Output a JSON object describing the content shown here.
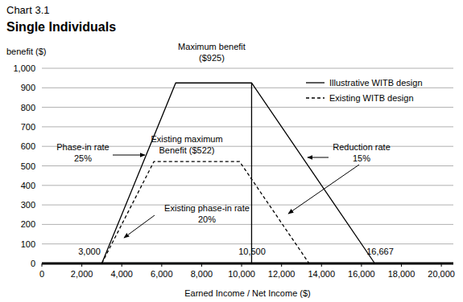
{
  "chart_data": {
    "type": "line",
    "title": "Chart 3.1",
    "subtitle": "Single Individuals",
    "y_label": "benefit ($)",
    "x_label": "Earned Income / Net Income ($)",
    "xlim": [
      0,
      20600
    ],
    "ylim": [
      0,
      1000
    ],
    "xticks": [
      0,
      {
        "value": 2000,
        "label": "2,000"
      },
      {
        "value": 4000,
        "label": "4,000"
      },
      {
        "value": 6000,
        "label": "6,000"
      },
      {
        "value": 8000,
        "label": "8,000"
      },
      {
        "value": 10000,
        "label": "10,000"
      },
      {
        "value": 12000,
        "label": "12,000"
      },
      {
        "value": 14000,
        "label": "14,000"
      },
      {
        "value": 16000,
        "label": "16,000"
      },
      {
        "value": 18000,
        "label": "18,000"
      },
      {
        "value": 20000,
        "label": "20,000"
      }
    ],
    "yticks": [
      0,
      100,
      200,
      300,
      400,
      500,
      600,
      700,
      800,
      900,
      {
        "value": 1000,
        "label": "1,000"
      }
    ],
    "grid": true,
    "legend": "upper right",
    "series": [
      {
        "name": "Illustrative WITB design",
        "color": "#000000",
        "line_style": "solid",
        "x": [
          3000,
          6700,
          10500,
          16667
        ],
        "values": [
          0,
          925,
          925,
          0
        ]
      },
      {
        "name": "Existing WITB design",
        "color": "#000000",
        "line_style": "dashed",
        "x": [
          3000,
          5610,
          9900,
          13380
        ],
        "values": [
          0,
          522,
          522,
          0
        ]
      }
    ],
    "reference_line": {
      "x": 10500,
      "y": [
        0,
        925
      ]
    },
    "annotations": [
      {
        "text": [
          "Maximum benefit",
          "($925)"
        ]
      },
      {
        "text": [
          "Existing maximum",
          "Benefit ($522)"
        ]
      },
      {
        "text": [
          "Phase-in rate",
          "25%"
        ]
      },
      {
        "text": [
          "Existing phase-in rate",
          "20%"
        ]
      },
      {
        "text": [
          "Reduction rate",
          "15%"
        ]
      },
      {
        "text": [
          "3,000"
        ]
      },
      {
        "text": [
          "10,500"
        ]
      },
      {
        "text": [
          "16,667"
        ]
      }
    ]
  }
}
